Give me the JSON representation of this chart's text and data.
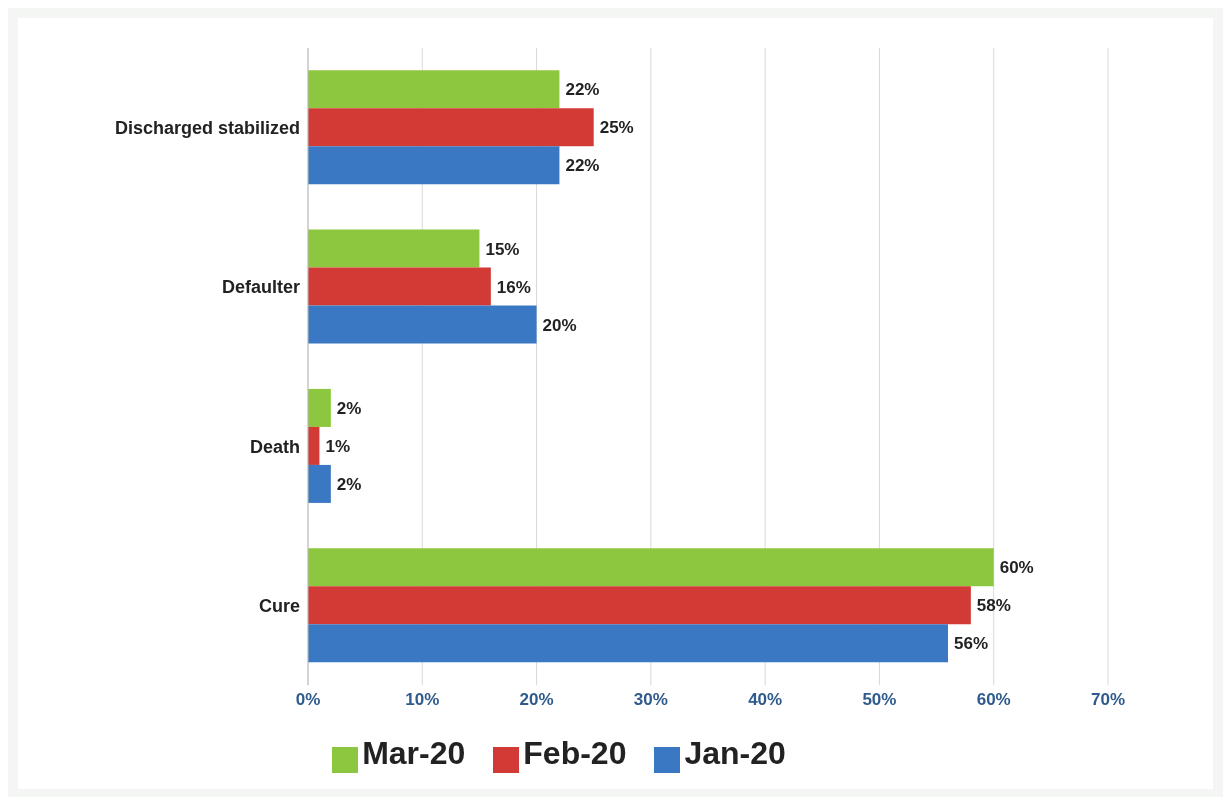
{
  "chart_data": {
    "type": "bar",
    "orientation": "horizontal",
    "categories": [
      "Discharged stabilized",
      "Defaulter",
      "Death",
      "Cure"
    ],
    "series": [
      {
        "name": "Mar-20",
        "color": "#8dc63f",
        "values": [
          22,
          15,
          2,
          60
        ],
        "value_labels": [
          "22%",
          "15%",
          "2%",
          "60%"
        ]
      },
      {
        "name": "Feb-20",
        "color": "#d23a35",
        "values": [
          25,
          16,
          1,
          58
        ],
        "value_labels": [
          "25%",
          "16%",
          "1%",
          "58%"
        ]
      },
      {
        "name": "Jan-20",
        "color": "#3b78c4",
        "values": [
          22,
          20,
          2,
          56
        ],
        "value_labels": [
          "22%",
          "20%",
          "2%",
          "56%"
        ]
      }
    ],
    "xlim": [
      0,
      70
    ],
    "xticks": [
      {
        "value": 0,
        "label": "0%"
      },
      {
        "value": 10,
        "label": "10%"
      },
      {
        "value": 20,
        "label": "20%"
      },
      {
        "value": 30,
        "label": "30%"
      },
      {
        "value": 40,
        "label": "40%"
      },
      {
        "value": 50,
        "label": "50%"
      },
      {
        "value": 60,
        "label": "60%"
      },
      {
        "value": 70,
        "label": "70%"
      }
    ],
    "grid": "x",
    "legend": "bottom"
  }
}
